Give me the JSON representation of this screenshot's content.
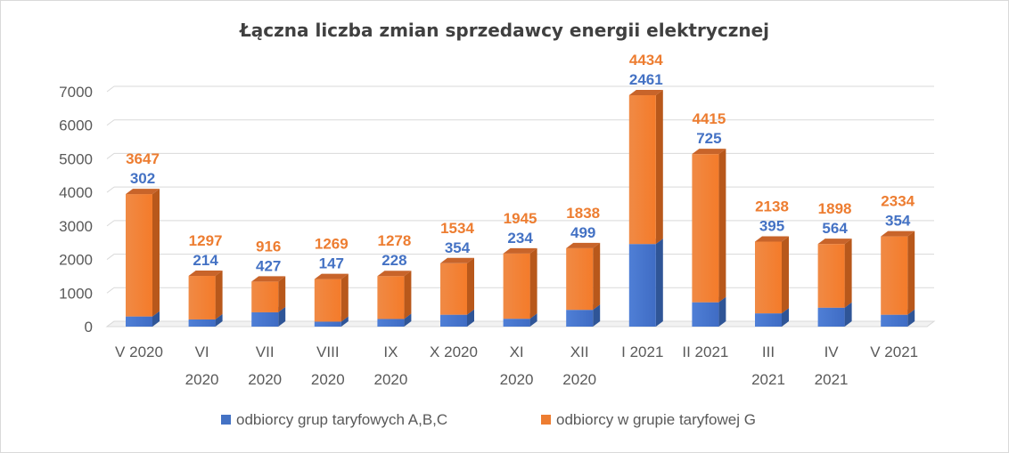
{
  "chart_data": {
    "type": "bar",
    "stacked": true,
    "title": "Łączna liczba zmian sprzedawcy energii elektrycznej",
    "xlabel": "",
    "ylabel": "",
    "ylim": [
      0,
      7000
    ],
    "yticks": [
      "0",
      "1000",
      "2000",
      "3000",
      "4000",
      "5000",
      "6000",
      "7000"
    ],
    "grid": true,
    "legend_position": "bottom",
    "categories": [
      [
        "V 2020"
      ],
      [
        "VI",
        "2020"
      ],
      [
        "VII",
        "2020"
      ],
      [
        "VIII",
        "2020"
      ],
      [
        "IX",
        "2020"
      ],
      [
        "X 2020"
      ],
      [
        "XI",
        "2020"
      ],
      [
        "XII",
        "2020"
      ],
      [
        "I 2021"
      ],
      [
        "II 2021"
      ],
      [
        "III",
        "2021"
      ],
      [
        "IV",
        "2021"
      ],
      [
        "V 2021"
      ]
    ],
    "series": [
      {
        "name": "odbiorcy grup taryfowych A,B,C",
        "color": "#4472c4",
        "values": [
          302,
          214,
          427,
          147,
          228,
          354,
          234,
          499,
          2461,
          725,
          395,
          564,
          354
        ]
      },
      {
        "name": "odbiorcy w grupie taryfowej G",
        "color": "#ed7d31",
        "values": [
          3647,
          1297,
          916,
          1269,
          1278,
          1534,
          1945,
          1838,
          4434,
          4415,
          2138,
          1898,
          2334
        ]
      }
    ]
  }
}
